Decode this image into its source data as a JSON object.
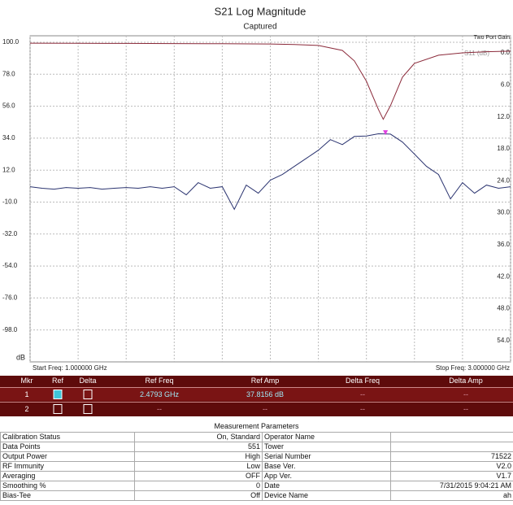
{
  "chart_data": {
    "type": "line",
    "title": "S21 Log Magnitude",
    "subtitle": "Captured",
    "y_unit_label": "dB",
    "y2_title": "Two Port Gain",
    "annotation": "S11 (dB)",
    "start_label": "Start Freq: 1.000000 GHz",
    "stop_label": "Stop Freq: 3.000000 GHz",
    "xlim": [
      1,
      3
    ],
    "xticks": [
      1,
      1.2,
      1.4,
      1.6,
      1.8,
      2,
      2.2,
      2.4,
      2.6,
      2.8,
      3
    ],
    "ylim": [
      -120,
      100
    ],
    "yticks": [
      {
        "value": 100,
        "label": "100.0"
      },
      {
        "value": 78,
        "label": "78.0"
      },
      {
        "value": 56,
        "label": "56.0"
      },
      {
        "value": 34,
        "label": "34.0"
      },
      {
        "value": 12,
        "label": "12.0"
      },
      {
        "value": -10,
        "label": "-10.0"
      },
      {
        "value": -32,
        "label": "-32.0"
      },
      {
        "value": -54,
        "label": "-54.0"
      },
      {
        "value": -76,
        "label": "-76.0"
      },
      {
        "value": -98,
        "label": "-98.0"
      }
    ],
    "y2lim": [
      58,
      -2
    ],
    "y2ticks": [
      {
        "value": 0,
        "label": "0.0"
      },
      {
        "value": 6,
        "label": "6.0"
      },
      {
        "value": 12,
        "label": "12.0"
      },
      {
        "value": 18,
        "label": "18.0"
      },
      {
        "value": 24,
        "label": "24.0"
      },
      {
        "value": 30,
        "label": "30.0"
      },
      {
        "value": 36,
        "label": "36.0"
      },
      {
        "value": 42,
        "label": "42.0"
      },
      {
        "value": 48,
        "label": "48.0"
      },
      {
        "value": 54,
        "label": "54.0"
      }
    ],
    "grid": true,
    "series": [
      {
        "color": "#2b3470",
        "x": [
          1,
          1.05,
          1.1,
          1.15,
          1.2,
          1.25,
          1.3,
          1.35,
          1.4,
          1.45,
          1.5,
          1.55,
          1.6,
          1.65,
          1.7,
          1.75,
          1.8,
          1.85,
          1.9,
          1.95,
          2,
          2.05,
          2.1,
          2.15,
          2.2,
          2.25,
          2.3,
          2.35,
          2.4,
          2.45,
          2.5,
          2.55,
          2.6,
          2.65,
          2.7,
          2.75,
          2.8,
          2.85,
          2.9,
          2.95,
          3
        ],
        "values": [
          0.6,
          -0.5,
          -1.1,
          0,
          -0.5,
          0,
          -1.1,
          -0.5,
          0,
          -0.5,
          0.6,
          -0.5,
          0.6,
          -5,
          3.4,
          -0.5,
          0.6,
          -15,
          1.7,
          -3.9,
          5.1,
          9,
          14.6,
          20.1,
          25.7,
          33,
          29.6,
          35.2,
          35.5,
          37,
          36.8,
          31.3,
          23,
          14.6,
          9,
          -7.8,
          3.4,
          -3.9,
          1.7,
          -0.5,
          0.6
        ]
      },
      {
        "color": "#8b2a3a",
        "x": [
          1,
          1.2,
          1.4,
          1.6,
          1.8,
          2,
          2.1,
          2.2,
          2.3,
          2.35,
          2.4,
          2.45,
          2.47,
          2.5,
          2.55,
          2.6,
          2.7,
          2.8,
          2.9,
          3
        ],
        "values": [
          99.4,
          99.3,
          99.2,
          99.1,
          99,
          98.8,
          98.5,
          97.8,
          94.4,
          87.2,
          73.2,
          53.7,
          47,
          56.4,
          76,
          85.5,
          91.1,
          92.7,
          93.5,
          93.9
        ]
      }
    ],
    "marker": {
      "x": 2.4793,
      "y": 37.8156,
      "color": "#e040e0"
    }
  },
  "marker_table": {
    "headers": [
      "Mkr",
      "Ref",
      "Delta",
      "Ref Freq",
      "Ref Amp",
      "Delta Freq",
      "Delta Amp"
    ],
    "rows": [
      {
        "mkr": "1",
        "ref": true,
        "delta": false,
        "cells": [
          "2.4793 GHz",
          "37.8156 dB",
          "--",
          "--"
        ]
      },
      {
        "mkr": "2",
        "ref": false,
        "delta": false,
        "cells": [
          "--",
          "--",
          "--",
          "--"
        ]
      }
    ]
  },
  "parameters": {
    "title": "Measurement Parameters",
    "rows": [
      [
        "Calibration Status",
        "On, Standard",
        "Operator Name",
        null
      ],
      [
        "Data Points",
        "551",
        "Tower",
        null
      ],
      [
        "Output Power",
        "High",
        "Serial Number",
        "71522"
      ],
      [
        "RF Immunity",
        "Low",
        "Base Ver.",
        "V2.0"
      ],
      [
        "Averaging",
        "OFF",
        "App Ver.",
        "V1.7"
      ],
      [
        "Smoothing %",
        "0",
        "Date",
        "7/31/2015 9:04:21 AM"
      ],
      [
        "Bias-Tee",
        "Off",
        "Device Name",
        "ah"
      ]
    ]
  }
}
